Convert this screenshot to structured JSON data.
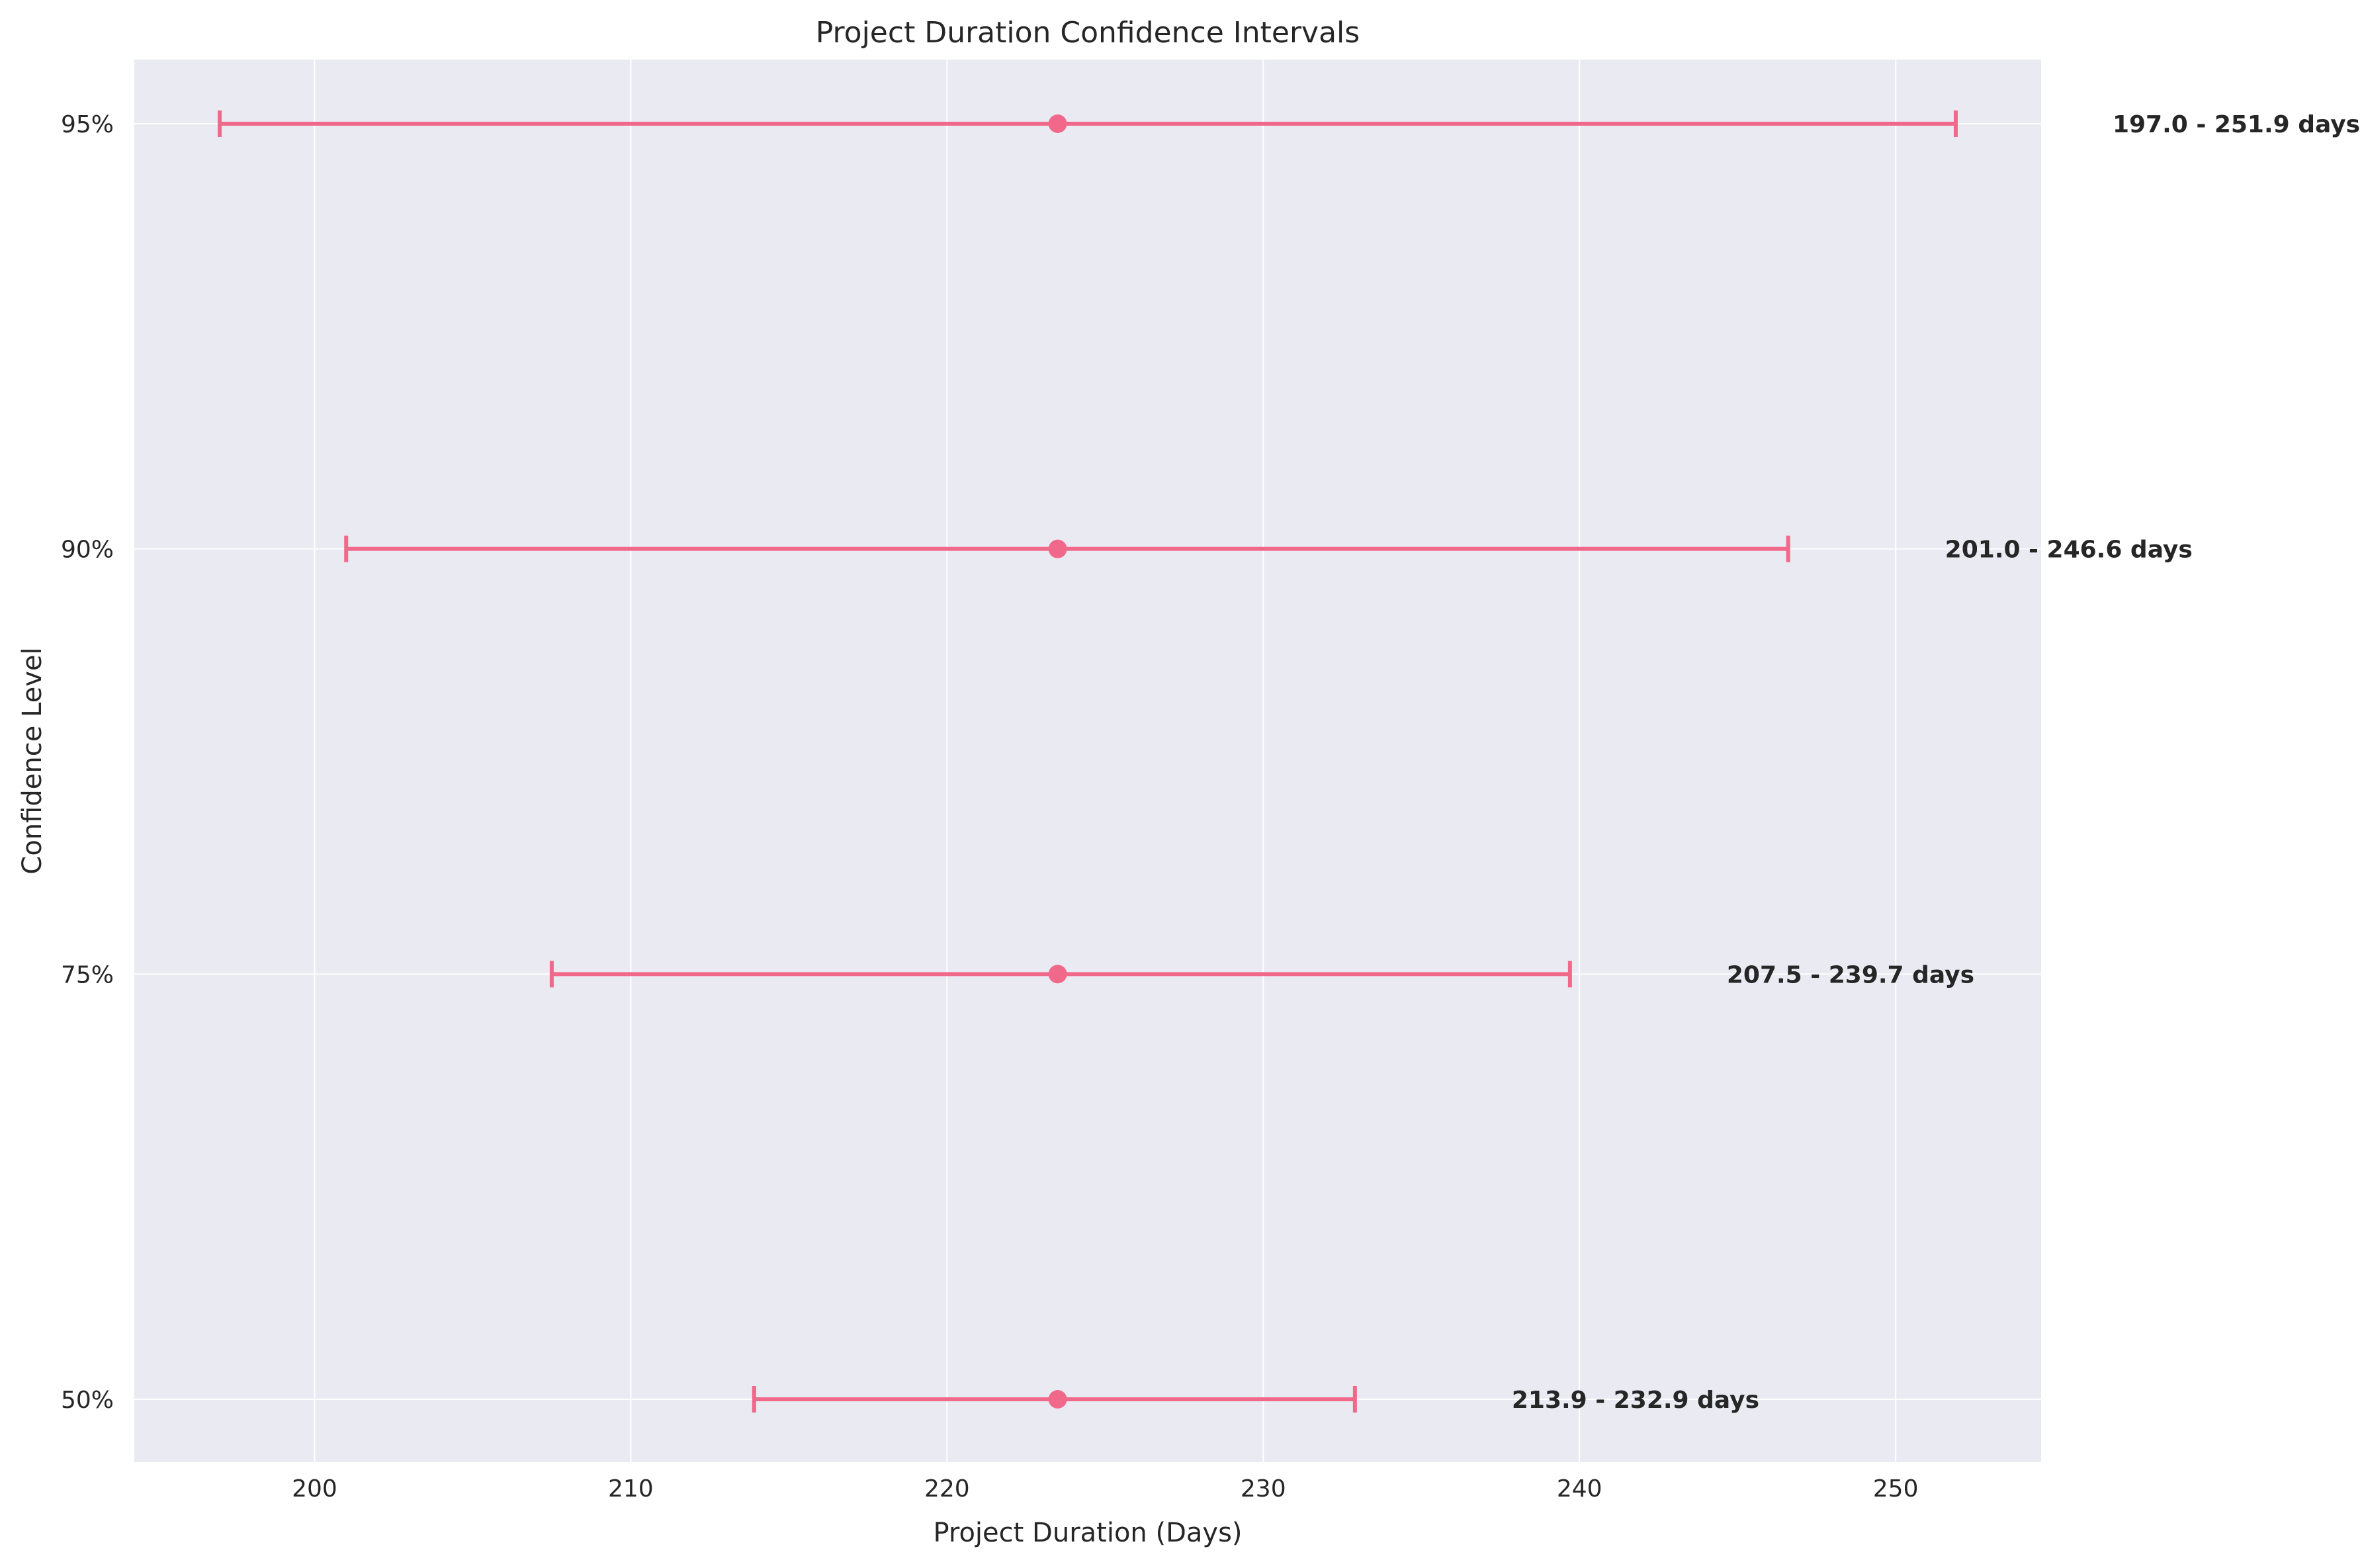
{
  "chart_data": {
    "type": "errorbar",
    "title": "Project Duration Confidence Intervals",
    "xlabel": "Project Duration (Days)",
    "ylabel": "Confidence Level",
    "xlim": [
      194.3,
      254.6
    ],
    "xticks": [
      200,
      210,
      220,
      230,
      240,
      250
    ],
    "categories": [
      "50%",
      "75%",
      "90%",
      "95%"
    ],
    "center": [
      223.5,
      223.5,
      223.5,
      223.5
    ],
    "lower": [
      213.9,
      207.5,
      201.0,
      197.0
    ],
    "upper": [
      232.9,
      239.7,
      246.6,
      251.9
    ],
    "annotations": [
      "213.9 - 232.9 days",
      "207.5 - 239.7 days",
      "201.0 - 246.6 days",
      "197.0 - 251.9 days"
    ],
    "grid": true,
    "colors": {
      "series": "#f0698a",
      "background": "#eaeaf2",
      "grid": "#ffffff"
    }
  }
}
